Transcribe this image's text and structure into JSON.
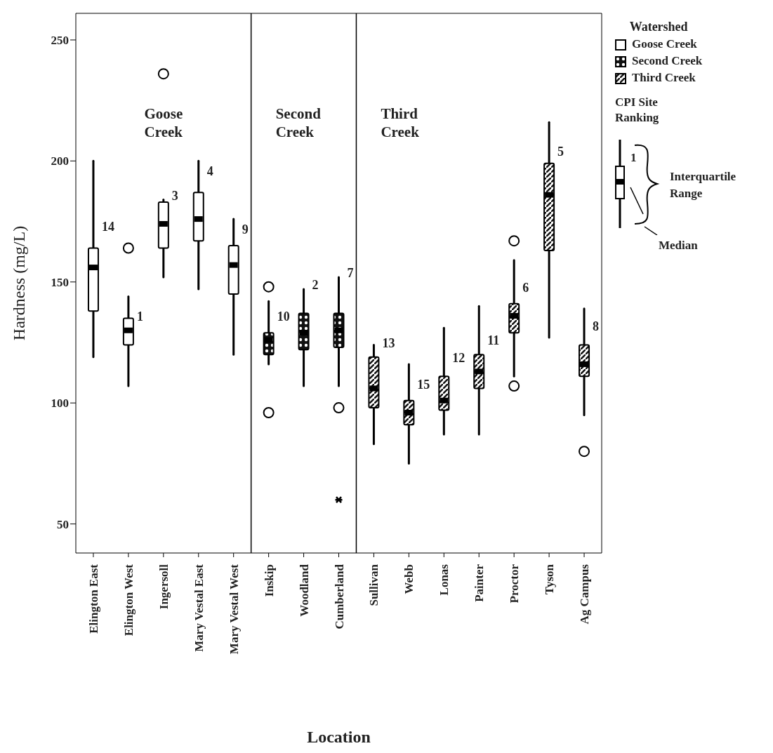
{
  "chart_data": {
    "type": "box",
    "xlabel": "Location",
    "ylabel": "Hardness (mg/L)",
    "legend_title": "Watershed",
    "legend": "top right",
    "categories": [
      "Elington East",
      "Elington West",
      "Ingersoll",
      "Mary Vestal East",
      "Mary Vestal West",
      "Inskip",
      "Woodland",
      "Cumberland",
      "Sullivan",
      "Webb",
      "Lonas",
      "Painter",
      "Proctor",
      "Tyson",
      "Ag Campus"
    ],
    "ylim": [
      38,
      261
    ],
    "yticks": [
      50,
      100,
      150,
      200,
      250
    ],
    "series": [
      {
        "name": "Goose Creek",
        "color": "#000000",
        "boxes": [
          {
            "low": 119,
            "q1": 138,
            "median": 156,
            "q3": 164,
            "high": 200
          },
          {
            "low": 107,
            "q1": 124,
            "median": 130,
            "q3": 135,
            "high": 144,
            "outliers": [
              164
            ]
          },
          {
            "low": 152,
            "q1": 164,
            "median": 174,
            "q3": 183,
            "high": 184,
            "outliers": [
              236
            ]
          },
          {
            "low": 147,
            "q1": 167,
            "median": 176,
            "q3": 187,
            "high": 200
          },
          {
            "low": 120,
            "q1": 145,
            "median": 157,
            "q3": 165,
            "high": 176
          },
          null,
          null,
          null,
          null,
          null,
          null,
          null,
          null,
          null,
          null
        ]
      },
      {
        "name": "Second Creek",
        "color": "#000000",
        "boxes": [
          null,
          null,
          null,
          null,
          null,
          {
            "low": 116,
            "q1": 120,
            "median": 126,
            "q3": 129,
            "high": 142,
            "outliers": [
              148,
              96
            ]
          },
          {
            "low": 107,
            "q1": 122,
            "median": 129,
            "q3": 137,
            "high": 147
          },
          {
            "low": 107,
            "q1": 123,
            "median": 130,
            "q3": 137,
            "high": 152,
            "outliers": [
              98,
              60
            ]
          },
          null,
          null,
          null,
          null,
          null,
          null,
          null
        ]
      },
      {
        "name": "Third Creek",
        "color": "#000000",
        "boxes": [
          null,
          null,
          null,
          null,
          null,
          null,
          null,
          null,
          {
            "low": 83,
            "q1": 98,
            "median": 106,
            "q3": 119,
            "high": 124
          },
          {
            "low": 75,
            "q1": 91,
            "median": 96,
            "q3": 101,
            "high": 116
          },
          {
            "low": 87,
            "q1": 97,
            "median": 101,
            "q3": 111,
            "high": 131
          },
          {
            "low": 87,
            "q1": 106,
            "median": 113,
            "q3": 120,
            "high": 140
          },
          {
            "low": 111,
            "q1": 129,
            "median": 136,
            "q3": 141,
            "high": 159,
            "outliers": [
              167,
              107
            ]
          },
          {
            "low": 127,
            "q1": 163,
            "median": 186,
            "q3": 199,
            "high": 216
          },
          {
            "low": 95,
            "q1": 111,
            "median": 116,
            "q3": 124,
            "high": 139,
            "outliers": [
              80
            ]
          }
        ]
      }
    ],
    "annotations": [
      "Goose Creek",
      "Second Creek",
      "Third Creek",
      "CPI Site Ranking",
      "1",
      "Interquartile Range",
      "Median",
      {
        "text": "14",
        "x": "Elington East",
        "y": 171
      },
      {
        "text": "1",
        "x": "Elington West",
        "y": 134
      },
      {
        "text": "3",
        "x": "Ingersoll",
        "y": 184
      },
      {
        "text": "4",
        "x": "Mary Vestal East",
        "y": 194
      },
      {
        "text": "9",
        "x": "Mary Vestal West",
        "y": 170
      },
      {
        "text": "10",
        "x": "Inskip",
        "y": 134
      },
      {
        "text": "2",
        "x": "Woodland",
        "y": 147
      },
      {
        "text": "7",
        "x": "Cumberland",
        "y": 152
      },
      {
        "text": "13",
        "x": "Sullivan",
        "y": 123
      },
      {
        "text": "15",
        "x": "Webb",
        "y": 106
      },
      {
        "text": "12",
        "x": "Lonas",
        "y": 117
      },
      {
        "text": "11",
        "x": "Painter",
        "y": 124
      },
      {
        "text": "6",
        "x": "Proctor",
        "y": 146
      },
      {
        "text": "5",
        "x": "Tyson",
        "y": 202
      },
      {
        "text": "8",
        "x": "Ag Campus",
        "y": 130
      }
    ]
  }
}
